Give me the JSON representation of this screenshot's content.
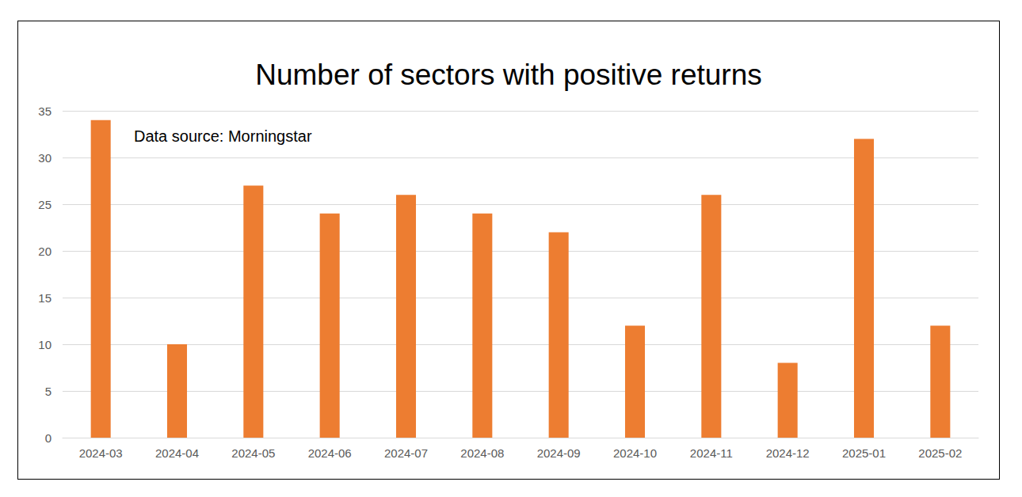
{
  "chart_data": {
    "type": "bar",
    "title": "Number of sectors with positive returns",
    "annotation": "Data source: Morningstar",
    "categories": [
      "2024-03",
      "2024-04",
      "2024-05",
      "2024-06",
      "2024-07",
      "2024-08",
      "2024-09",
      "2024-10",
      "2024-11",
      "2024-12",
      "2025-01",
      "2025-02"
    ],
    "values": [
      34,
      10,
      27,
      24,
      26,
      24,
      22,
      12,
      26,
      8,
      32,
      12
    ],
    "color": "#ED7D31",
    "ylim": [
      0,
      35
    ],
    "yticks": [
      0,
      5,
      10,
      15,
      20,
      25,
      30,
      35
    ],
    "grid": true
  }
}
